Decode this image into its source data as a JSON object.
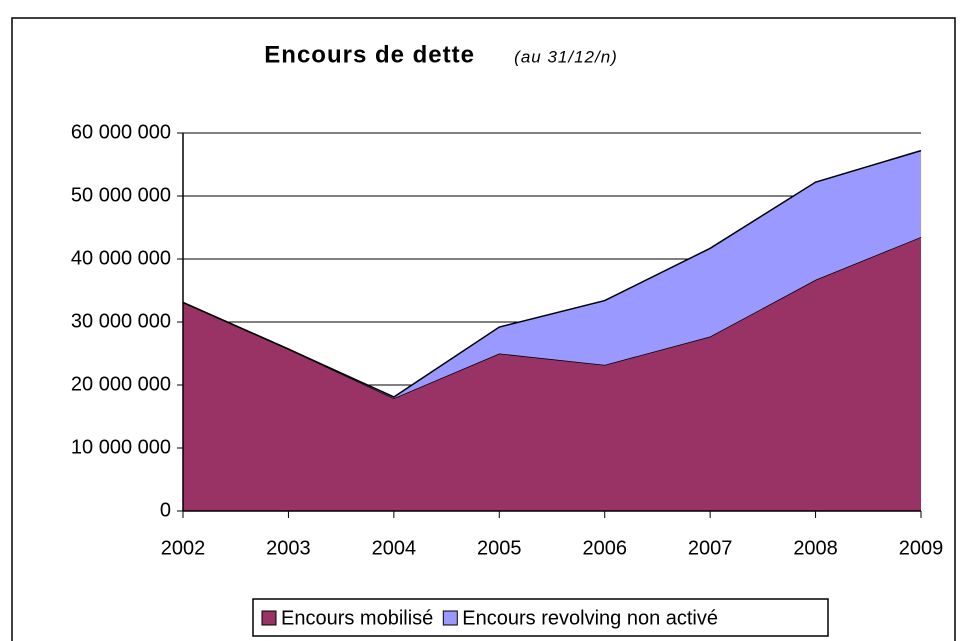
{
  "chart_data": {
    "type": "stacked_area",
    "title": "Encours de dette",
    "subtitle": "(au 31/12/n)",
    "categories": [
      "2002",
      "2003",
      "2004",
      "2005",
      "2006",
      "2007",
      "2008",
      "2009"
    ],
    "series": [
      {
        "name": "Encours mobilisé",
        "color": "#993366",
        "values": [
          33100000,
          25700000,
          17900000,
          25000000,
          23200000,
          27700000,
          36700000,
          43500000
        ]
      },
      {
        "name": "Encours revolving non activé",
        "color": "#9999ff",
        "values": [
          0,
          0,
          200000,
          4200000,
          10200000,
          14000000,
          15500000,
          13700000
        ]
      }
    ],
    "ylim": [
      0,
      60000000
    ],
    "yticks": [
      0,
      {
        "value": 10000000,
        "label": "10 000 000"
      },
      {
        "value": 20000000,
        "label": "20 000 000"
      },
      {
        "value": 30000000,
        "label": "30 000 000"
      },
      {
        "value": 40000000,
        "label": "40 000 000"
      },
      {
        "value": 50000000,
        "label": "50 000 000"
      },
      {
        "value": 60000000,
        "label": "60 000 000"
      }
    ],
    "grid": true,
    "legend": "bottom"
  }
}
